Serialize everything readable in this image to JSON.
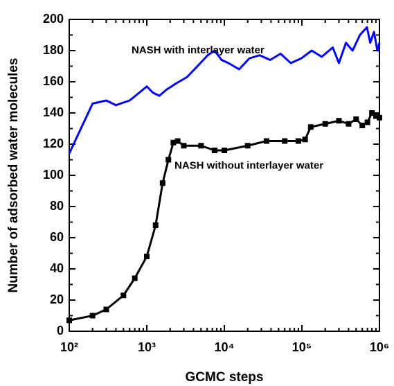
{
  "chart_data": {
    "type": "line",
    "xlabel": "GCMC steps",
    "ylabel": "Number of adsorbed water molecules",
    "xscale": "log",
    "xlim": [
      100,
      1000000
    ],
    "ylim": [
      0,
      200
    ],
    "xticks": [
      {
        "value": 100,
        "label": "10²"
      },
      {
        "value": 1000,
        "label": "10³"
      },
      {
        "value": 10000,
        "label": "10⁴"
      },
      {
        "value": 100000,
        "label": "10⁵"
      },
      {
        "value": 1000000,
        "label": "10⁶"
      }
    ],
    "yticks": [
      0,
      20,
      40,
      60,
      80,
      100,
      120,
      140,
      160,
      180,
      200
    ],
    "series": [
      {
        "name": "NASH with interlayer water",
        "color": "#0000ff",
        "x": [
          100,
          200,
          300,
          400,
          600,
          800,
          1000,
          1200,
          1450,
          1800,
          2400,
          3300,
          4500,
          6100,
          7500,
          9200,
          11300,
          15500,
          21000,
          28500,
          39000,
          53000,
          72000,
          98000,
          134000,
          180000,
          250000,
          300000,
          370000,
          450000,
          560000,
          690000,
          760000,
          850000,
          940000,
          1000000
        ],
        "values": [
          114,
          146,
          148,
          145,
          148,
          153,
          157,
          153,
          151,
          155,
          159,
          163,
          170,
          177,
          180,
          174,
          172,
          168,
          175,
          177,
          174,
          178,
          172,
          175,
          180,
          176,
          182,
          172,
          185,
          180,
          190,
          195,
          185,
          192,
          180,
          185
        ]
      },
      {
        "name": "NASH without interlayer water",
        "color": "#000000",
        "x": [
          100,
          200,
          300,
          500,
          700,
          1000,
          1300,
          1600,
          1900,
          2200,
          2500,
          3000,
          5000,
          7500,
          10000,
          20000,
          35000,
          60000,
          90000,
          110000,
          130000,
          200000,
          300000,
          400000,
          500000,
          600000,
          700000,
          800000,
          900000,
          1000000
        ],
        "values": [
          7,
          10,
          14,
          23,
          34,
          48,
          68,
          95,
          110,
          121,
          122,
          119,
          119,
          116,
          116,
          119,
          122,
          122,
          122,
          123,
          131,
          133,
          135,
          133,
          136,
          132,
          134,
          140,
          138,
          137
        ]
      }
    ]
  }
}
